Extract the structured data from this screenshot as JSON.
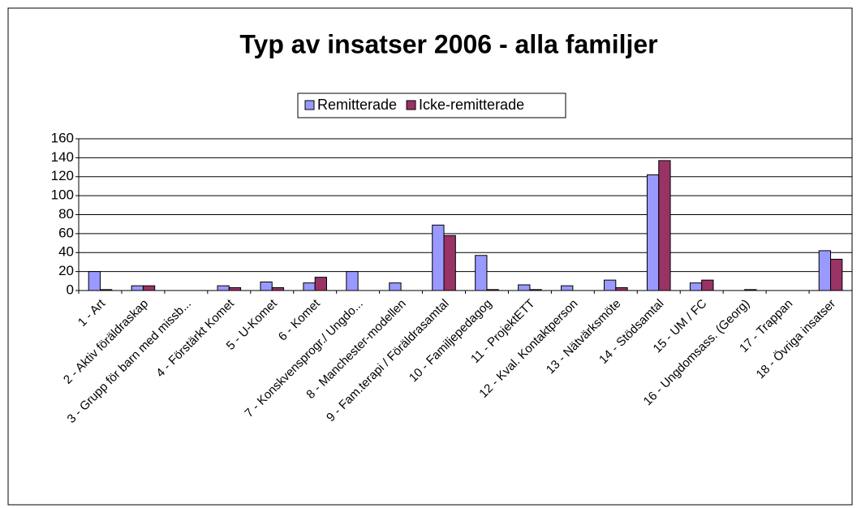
{
  "chart_data": {
    "type": "bar",
    "title": "Typ av insatser 2006 - alla familjer",
    "categories": [
      "1 - Art",
      "2 - Aktiv föräldraskap",
      "3 - Grupp för barn med missb...",
      "4 - Förstärkt Komet",
      "5 - U-Komet",
      "6 - Komet",
      "7 - Konskvensprogr./ Ungdo...",
      "8 - Manchester-modellen",
      "9 - Fam.terapi / Föräldrasamtal",
      "10 - Familjepedagog",
      "11 - ProjektETT",
      "12 - Kval. Kontaktperson",
      "13 - Nätvärksmöte",
      "14 - Stödsamtal",
      "15 - UM / FC",
      "16 - Ungdomsass. (Georg)",
      "17 - Trappan",
      "18 - Övriga insatser"
    ],
    "series": [
      {
        "name": "Remitterade",
        "color": "#9999ff",
        "values": [
          20,
          5,
          0,
          5,
          9,
          8,
          20,
          8,
          69,
          37,
          6,
          5,
          11,
          122,
          8,
          0,
          0,
          42
        ]
      },
      {
        "name": "Icke-remitterade",
        "color": "#993366",
        "values": [
          1,
          5,
          0,
          3,
          3,
          14,
          0,
          0,
          58,
          1,
          1,
          0,
          3,
          137,
          11,
          1,
          0,
          33
        ]
      }
    ],
    "ylim": [
      0,
      160
    ],
    "yticks": [
      0,
      20,
      40,
      60,
      80,
      100,
      120,
      140,
      160
    ],
    "grid": true,
    "legend": "top"
  }
}
